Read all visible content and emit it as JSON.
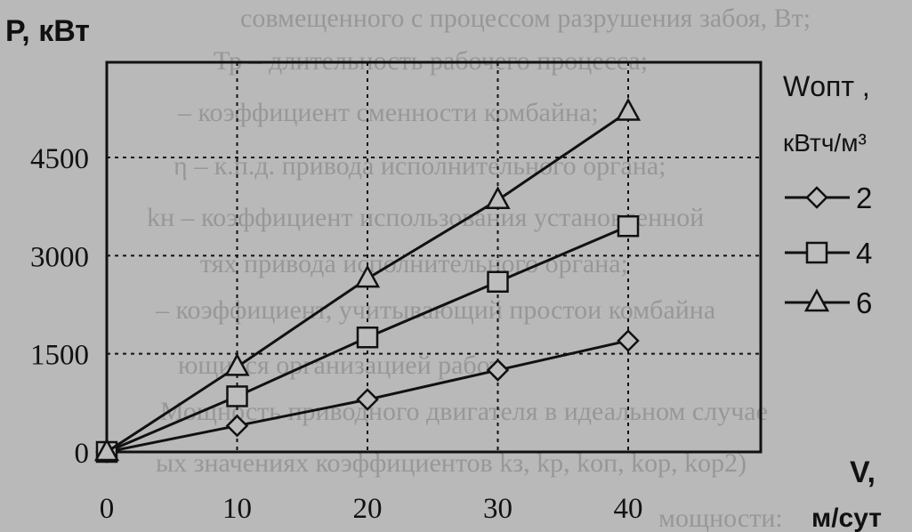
{
  "chart_data": {
    "type": "line",
    "ylabel": "P, кВт",
    "xlabel_line1": "V,",
    "xlabel_line2": "м/сут",
    "x": [
      0,
      10,
      20,
      30,
      40
    ],
    "x_ticks": [
      "0",
      "10",
      "20",
      "30",
      "40"
    ],
    "y_ticks": [
      "0",
      "1500",
      "3000",
      "4500"
    ],
    "y_tick_values": [
      0,
      1500,
      3000,
      4500
    ],
    "xlim": [
      0,
      40
    ],
    "ylim": [
      0,
      5400
    ],
    "grid": true,
    "legend_title_line1": "Wопт ,",
    "legend_title_line2": "кВтч/м³",
    "legend_position": "right",
    "series": [
      {
        "name": "2",
        "marker": "diamond",
        "values": [
          0,
          400,
          800,
          1250,
          1700
        ]
      },
      {
        "name": "4",
        "marker": "square",
        "values": [
          0,
          850,
          1750,
          2600,
          3450
        ]
      },
      {
        "name": "6",
        "marker": "triangle",
        "values": [
          0,
          1300,
          2650,
          3850,
          5200
        ]
      }
    ]
  },
  "background_text": [
    "совмещенного с процессом разрушения забоя, Вт;",
    "Тр – длительность рабочего процесса;",
    "– коэффициент сменности комбайна;",
    "η – к.п.д. привода исполнительного органа;",
    "kн – коэффициент использования установленной",
    "тях привода исполнительного органа;",
    "– коэффициент, учитывающий простои комбайна",
    "ющиеся организацией работ.",
    "Мощность приводного двигателя в идеальном случае",
    "ых значениях коэффициентов kз, kр, kоп, kор, kор2)",
    "мощности:"
  ]
}
